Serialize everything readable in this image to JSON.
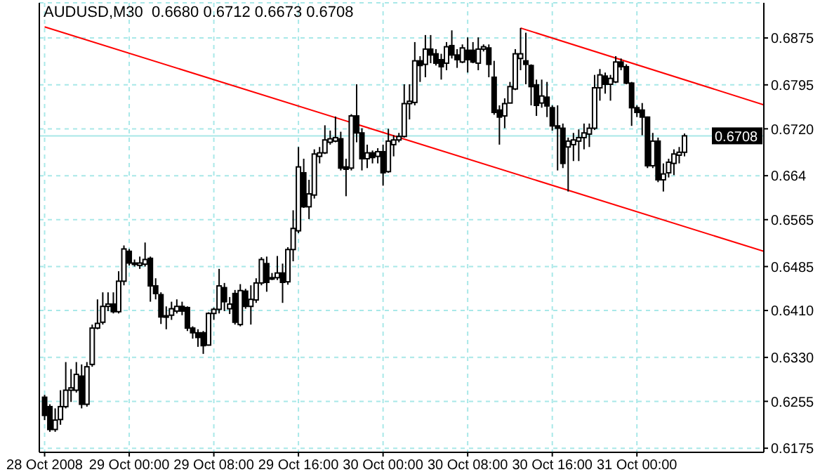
{
  "chart_data": {
    "type": "candlestick",
    "title": "AUDUSD,M30  0.6680 0.6712 0.6673 0.6708",
    "color": "#000000",
    "grid": true,
    "x": [
      "2008-10-28T16:00",
      "2008-10-28T16:30",
      "2008-10-28T17:00",
      "2008-10-28T17:30",
      "2008-10-28T18:00",
      "2008-10-28T18:30",
      "2008-10-28T19:00",
      "2008-10-28T19:30",
      "2008-10-28T20:00",
      "2008-10-28T20:30",
      "2008-10-28T21:00",
      "2008-10-28T21:30",
      "2008-10-28T22:00",
      "2008-10-28T22:30",
      "2008-10-28T23:00",
      "2008-10-28T23:30",
      "2008-10-29T00:00",
      "2008-10-29T00:30",
      "2008-10-29T01:00",
      "2008-10-29T01:30",
      "2008-10-29T02:00",
      "2008-10-29T02:30",
      "2008-10-29T03:00",
      "2008-10-29T03:30",
      "2008-10-29T04:00",
      "2008-10-29T04:30",
      "2008-10-29T05:00",
      "2008-10-29T05:30",
      "2008-10-29T06:00",
      "2008-10-29T06:30",
      "2008-10-29T07:00",
      "2008-10-29T07:30",
      "2008-10-29T08:00",
      "2008-10-29T08:30",
      "2008-10-29T09:00",
      "2008-10-29T09:30",
      "2008-10-29T10:00",
      "2008-10-29T10:30",
      "2008-10-29T11:00",
      "2008-10-29T11:30",
      "2008-10-29T12:00",
      "2008-10-29T12:30",
      "2008-10-29T13:00",
      "2008-10-29T13:30",
      "2008-10-29T14:00",
      "2008-10-29T14:30",
      "2008-10-29T15:00",
      "2008-10-29T15:30",
      "2008-10-29T16:00",
      "2008-10-29T16:30",
      "2008-10-29T17:00",
      "2008-10-29T17:30",
      "2008-10-29T18:00",
      "2008-10-29T18:30",
      "2008-10-29T19:00",
      "2008-10-29T19:30",
      "2008-10-29T20:00",
      "2008-10-29T20:30",
      "2008-10-29T21:00",
      "2008-10-29T21:30",
      "2008-10-29T22:00",
      "2008-10-29T22:30",
      "2008-10-29T23:00",
      "2008-10-29T23:30",
      "2008-10-30T00:00",
      "2008-10-30T00:30",
      "2008-10-30T01:00",
      "2008-10-30T01:30",
      "2008-10-30T02:00",
      "2008-10-30T02:30",
      "2008-10-30T03:00",
      "2008-10-30T03:30",
      "2008-10-30T04:00",
      "2008-10-30T04:30",
      "2008-10-30T05:00",
      "2008-10-30T05:30",
      "2008-10-30T06:00",
      "2008-10-30T06:30",
      "2008-10-30T07:00",
      "2008-10-30T07:30",
      "2008-10-30T08:00",
      "2008-10-30T08:30",
      "2008-10-30T09:00",
      "2008-10-30T09:30",
      "2008-10-30T10:00",
      "2008-10-30T10:30",
      "2008-10-30T11:00",
      "2008-10-30T11:30",
      "2008-10-30T12:00",
      "2008-10-30T12:30",
      "2008-10-30T13:00",
      "2008-10-30T13:30",
      "2008-10-30T14:00",
      "2008-10-30T14:30",
      "2008-10-30T15:00",
      "2008-10-30T15:30",
      "2008-10-30T16:00",
      "2008-10-30T16:30",
      "2008-10-30T17:00",
      "2008-10-30T17:30",
      "2008-10-30T18:00",
      "2008-10-30T18:30",
      "2008-10-30T19:00",
      "2008-10-30T19:30",
      "2008-10-30T20:00",
      "2008-10-30T20:30",
      "2008-10-30T21:00",
      "2008-10-30T21:30",
      "2008-10-30T22:00",
      "2008-10-30T22:30",
      "2008-10-30T23:00",
      "2008-10-30T23:30",
      "2008-10-31T00:00",
      "2008-10-31T00:30",
      "2008-10-31T01:00",
      "2008-10-31T01:30",
      "2008-10-31T02:00",
      "2008-10-31T02:30",
      "2008-10-31T03:00",
      "2008-10-31T03:30",
      "2008-10-31T04:00",
      "2008-10-31T04:30"
    ],
    "ohlc": [
      [
        0.6262,
        0.6266,
        0.6223,
        0.6231
      ],
      [
        0.6246,
        0.625,
        0.6203,
        0.6207
      ],
      [
        0.6207,
        0.6243,
        0.6203,
        0.6223
      ],
      [
        0.6224,
        0.6274,
        0.6215,
        0.6246
      ],
      [
        0.6246,
        0.6322,
        0.6243,
        0.6274
      ],
      [
        0.6274,
        0.631,
        0.6254,
        0.6278
      ],
      [
        0.6274,
        0.6322,
        0.627,
        0.6301
      ],
      [
        0.6298,
        0.6318,
        0.6243,
        0.625
      ],
      [
        0.625,
        0.6322,
        0.6246,
        0.6314
      ],
      [
        0.6318,
        0.6386,
        0.6314,
        0.638
      ],
      [
        0.638,
        0.6429,
        0.6378,
        0.6388
      ],
      [
        0.639,
        0.6441,
        0.6386,
        0.6417
      ],
      [
        0.6417,
        0.6441,
        0.6409,
        0.6421
      ],
      [
        0.6421,
        0.6441,
        0.6405,
        0.6408
      ],
      [
        0.6408,
        0.6477,
        0.6405,
        0.646
      ],
      [
        0.646,
        0.6521,
        0.6453,
        0.6515
      ],
      [
        0.6511,
        0.6515,
        0.6487,
        0.6491
      ],
      [
        0.6491,
        0.6497,
        0.6485,
        0.6489
      ],
      [
        0.6487,
        0.6502,
        0.6481,
        0.6491
      ],
      [
        0.6489,
        0.6526,
        0.6485,
        0.6497
      ],
      [
        0.6499,
        0.6502,
        0.6425,
        0.6452
      ],
      [
        0.6452,
        0.6465,
        0.6429,
        0.6439
      ],
      [
        0.6437,
        0.6441,
        0.6387,
        0.6399
      ],
      [
        0.6401,
        0.6417,
        0.6378,
        0.6399
      ],
      [
        0.6402,
        0.6425,
        0.6394,
        0.6413
      ],
      [
        0.6409,
        0.6429,
        0.6405,
        0.6417
      ],
      [
        0.6417,
        0.6425,
        0.6402,
        0.6409
      ],
      [
        0.6415,
        0.6417,
        0.6375,
        0.638
      ],
      [
        0.638,
        0.6383,
        0.6362,
        0.6372
      ],
      [
        0.6372,
        0.6378,
        0.6348,
        0.6364
      ],
      [
        0.6372,
        0.6375,
        0.6336,
        0.635
      ],
      [
        0.6351,
        0.6407,
        0.635,
        0.6405
      ],
      [
        0.6405,
        0.6415,
        0.6394,
        0.6412
      ],
      [
        0.6412,
        0.6481,
        0.6405,
        0.6452
      ],
      [
        0.6449,
        0.6457,
        0.6409,
        0.6425
      ],
      [
        0.6413,
        0.6433,
        0.6404,
        0.6421
      ],
      [
        0.6439,
        0.6445,
        0.6386,
        0.639
      ],
      [
        0.6386,
        0.6455,
        0.6383,
        0.6444
      ],
      [
        0.6443,
        0.6447,
        0.6413,
        0.6417
      ],
      [
        0.6417,
        0.6453,
        0.6386,
        0.6429
      ],
      [
        0.6428,
        0.6465,
        0.6423,
        0.6457
      ],
      [
        0.6457,
        0.6501,
        0.6453,
        0.6497
      ],
      [
        0.649,
        0.6502,
        0.6442,
        0.6458
      ],
      [
        0.6466,
        0.6474,
        0.6462,
        0.6466
      ],
      [
        0.6466,
        0.6503,
        0.6462,
        0.6474
      ],
      [
        0.6474,
        0.649,
        0.6423,
        0.6458
      ],
      [
        0.6459,
        0.6518,
        0.6454,
        0.6514
      ],
      [
        0.6514,
        0.6581,
        0.6494,
        0.655
      ],
      [
        0.6546,
        0.6689,
        0.6542,
        0.6655
      ],
      [
        0.6645,
        0.6669,
        0.6585,
        0.6587
      ],
      [
        0.6587,
        0.6633,
        0.6566,
        0.6609
      ],
      [
        0.6607,
        0.6685,
        0.6601,
        0.6677
      ],
      [
        0.6673,
        0.6689,
        0.6661,
        0.6679
      ],
      [
        0.6679,
        0.6726,
        0.6677,
        0.6701
      ],
      [
        0.6697,
        0.6717,
        0.6693,
        0.6703
      ],
      [
        0.6699,
        0.6741,
        0.6697,
        0.6705
      ],
      [
        0.6703,
        0.6715,
        0.6649,
        0.6653
      ],
      [
        0.6655,
        0.6669,
        0.6605,
        0.6651
      ],
      [
        0.6653,
        0.6745,
        0.6649,
        0.6742
      ],
      [
        0.6742,
        0.6796,
        0.6697,
        0.6713
      ],
      [
        0.6713,
        0.6721,
        0.6649,
        0.6669
      ],
      [
        0.6669,
        0.6693,
        0.6653,
        0.6679
      ],
      [
        0.6679,
        0.6683,
        0.6661,
        0.6671
      ],
      [
        0.6673,
        0.6687,
        0.6661,
        0.6681
      ],
      [
        0.6681,
        0.6693,
        0.6623,
        0.6645
      ],
      [
        0.6647,
        0.672,
        0.6645,
        0.6699
      ],
      [
        0.6693,
        0.6709,
        0.6673,
        0.6701
      ],
      [
        0.6701,
        0.6713,
        0.6697,
        0.6707
      ],
      [
        0.6707,
        0.6796,
        0.6705,
        0.6763
      ],
      [
        0.6763,
        0.6796,
        0.6736,
        0.6767
      ],
      [
        0.6765,
        0.6868,
        0.676,
        0.6836
      ],
      [
        0.6836,
        0.6844,
        0.68,
        0.6828
      ],
      [
        0.683,
        0.688,
        0.6808,
        0.6856
      ],
      [
        0.6856,
        0.688,
        0.6832,
        0.6846
      ],
      [
        0.6848,
        0.6856,
        0.6828,
        0.6832
      ],
      [
        0.6838,
        0.6848,
        0.6804,
        0.6826
      ],
      [
        0.6832,
        0.6868,
        0.682,
        0.686
      ],
      [
        0.6862,
        0.6888,
        0.684,
        0.6846
      ],
      [
        0.6846,
        0.6856,
        0.6824,
        0.6838
      ],
      [
        0.6834,
        0.6864,
        0.6832,
        0.6858
      ],
      [
        0.6854,
        0.6876,
        0.6816,
        0.6838
      ],
      [
        0.6854,
        0.6868,
        0.6832,
        0.6834
      ],
      [
        0.6832,
        0.6876,
        0.682,
        0.6856
      ],
      [
        0.6856,
        0.6864,
        0.6852,
        0.686
      ],
      [
        0.6858,
        0.6864,
        0.6808,
        0.683
      ],
      [
        0.6808,
        0.6836,
        0.6744,
        0.6748
      ],
      [
        0.6752,
        0.676,
        0.6693,
        0.674
      ],
      [
        0.6742,
        0.6772,
        0.6721,
        0.6763
      ],
      [
        0.6764,
        0.68,
        0.6764,
        0.6792
      ],
      [
        0.6788,
        0.6856,
        0.6786,
        0.6848
      ],
      [
        0.684,
        0.6892,
        0.682,
        0.6848
      ],
      [
        0.6836,
        0.6884,
        0.6796,
        0.683
      ],
      [
        0.6828,
        0.683,
        0.676,
        0.6792
      ],
      [
        0.6795,
        0.6804,
        0.6742,
        0.676
      ],
      [
        0.6764,
        0.6804,
        0.6756,
        0.6776
      ],
      [
        0.6774,
        0.68,
        0.674,
        0.6759
      ],
      [
        0.6756,
        0.676,
        0.6717,
        0.6725
      ],
      [
        0.6725,
        0.676,
        0.6649,
        0.6721
      ],
      [
        0.6721,
        0.6729,
        0.6653,
        0.6661
      ],
      [
        0.6689,
        0.6705,
        0.6613,
        0.6699
      ],
      [
        0.6693,
        0.6713,
        0.6665,
        0.6701
      ],
      [
        0.6699,
        0.6719,
        0.6665,
        0.6705
      ],
      [
        0.6705,
        0.6729,
        0.6685,
        0.6713
      ],
      [
        0.6711,
        0.6729,
        0.6689,
        0.6721
      ],
      [
        0.6721,
        0.6812,
        0.6718,
        0.679
      ],
      [
        0.679,
        0.6822,
        0.6768,
        0.6812
      ],
      [
        0.681,
        0.6816,
        0.678,
        0.6796
      ],
      [
        0.6796,
        0.6812,
        0.6768,
        0.6806
      ],
      [
        0.68,
        0.6844,
        0.6798,
        0.6834
      ],
      [
        0.6834,
        0.684,
        0.682,
        0.6826
      ],
      [
        0.6826,
        0.683,
        0.6796,
        0.6798
      ],
      [
        0.6798,
        0.68,
        0.6725,
        0.6756
      ],
      [
        0.6756,
        0.676,
        0.674,
        0.6748
      ],
      [
        0.6752,
        0.6764,
        0.6709,
        0.674
      ],
      [
        0.674,
        0.6741,
        0.6653,
        0.6657
      ],
      [
        0.6657,
        0.6713,
        0.6653,
        0.6699
      ],
      [
        0.6699,
        0.6705,
        0.6629,
        0.6633
      ],
      [
        0.6633,
        0.6661,
        0.6613,
        0.6643
      ],
      [
        0.6645,
        0.6669,
        0.6637,
        0.6663
      ],
      [
        0.6661,
        0.6685,
        0.6641,
        0.6677
      ],
      [
        0.6675,
        0.6689,
        0.6661,
        0.668
      ],
      [
        0.668,
        0.6712,
        0.6673,
        0.6708
      ]
    ],
    "series": [
      {
        "type": "line",
        "color": "#ff0000",
        "x": [
          "2008-10-28T16:00",
          "2008-10-31T12:00"
        ],
        "values": [
          0.6894,
          0.6511
        ]
      },
      {
        "type": "line",
        "color": "#ff0000",
        "x": [
          "2008-10-30T13:00",
          "2008-10-31T12:00"
        ],
        "values": [
          0.6892,
          0.6761
        ]
      }
    ],
    "xlim": [
      "2008-10-28T15:30",
      "2008-10-31T12:00"
    ],
    "xticks": [
      {
        "value": "2008-10-28T16:00",
        "label": "28 Oct 2008"
      },
      {
        "value": "2008-10-29T00:00",
        "label": "29 Oct 00:00"
      },
      {
        "value": "2008-10-29T08:00",
        "label": "29 Oct 08:00"
      },
      {
        "value": "2008-10-29T16:00",
        "label": "29 Oct 16:00"
      },
      {
        "value": "2008-10-30T00:00",
        "label": "30 Oct 00:00"
      },
      {
        "value": "2008-10-30T08:00",
        "label": "30 Oct 08:00"
      },
      {
        "value": "2008-10-30T16:00",
        "label": "30 Oct 16:00"
      },
      {
        "value": "2008-10-31T00:00",
        "label": "31 Oct 00:00"
      }
    ],
    "ylim": [
      0.6168,
      0.6935
    ],
    "yticks": [
      0.6875,
      0.6795,
      {
        "value": 0.672,
        "label": "0.6720"
      },
      0.664,
      0.6565,
      0.6485,
      {
        "value": 0.641,
        "label": "0.6410"
      },
      {
        "value": 0.633,
        "label": "0.6330"
      },
      0.6255,
      0.6175
    ],
    "ref_lines": [
      {
        "axis": "y",
        "value": 0.6708,
        "label": "0.6708",
        "color": "#a8e8e8"
      }
    ]
  }
}
